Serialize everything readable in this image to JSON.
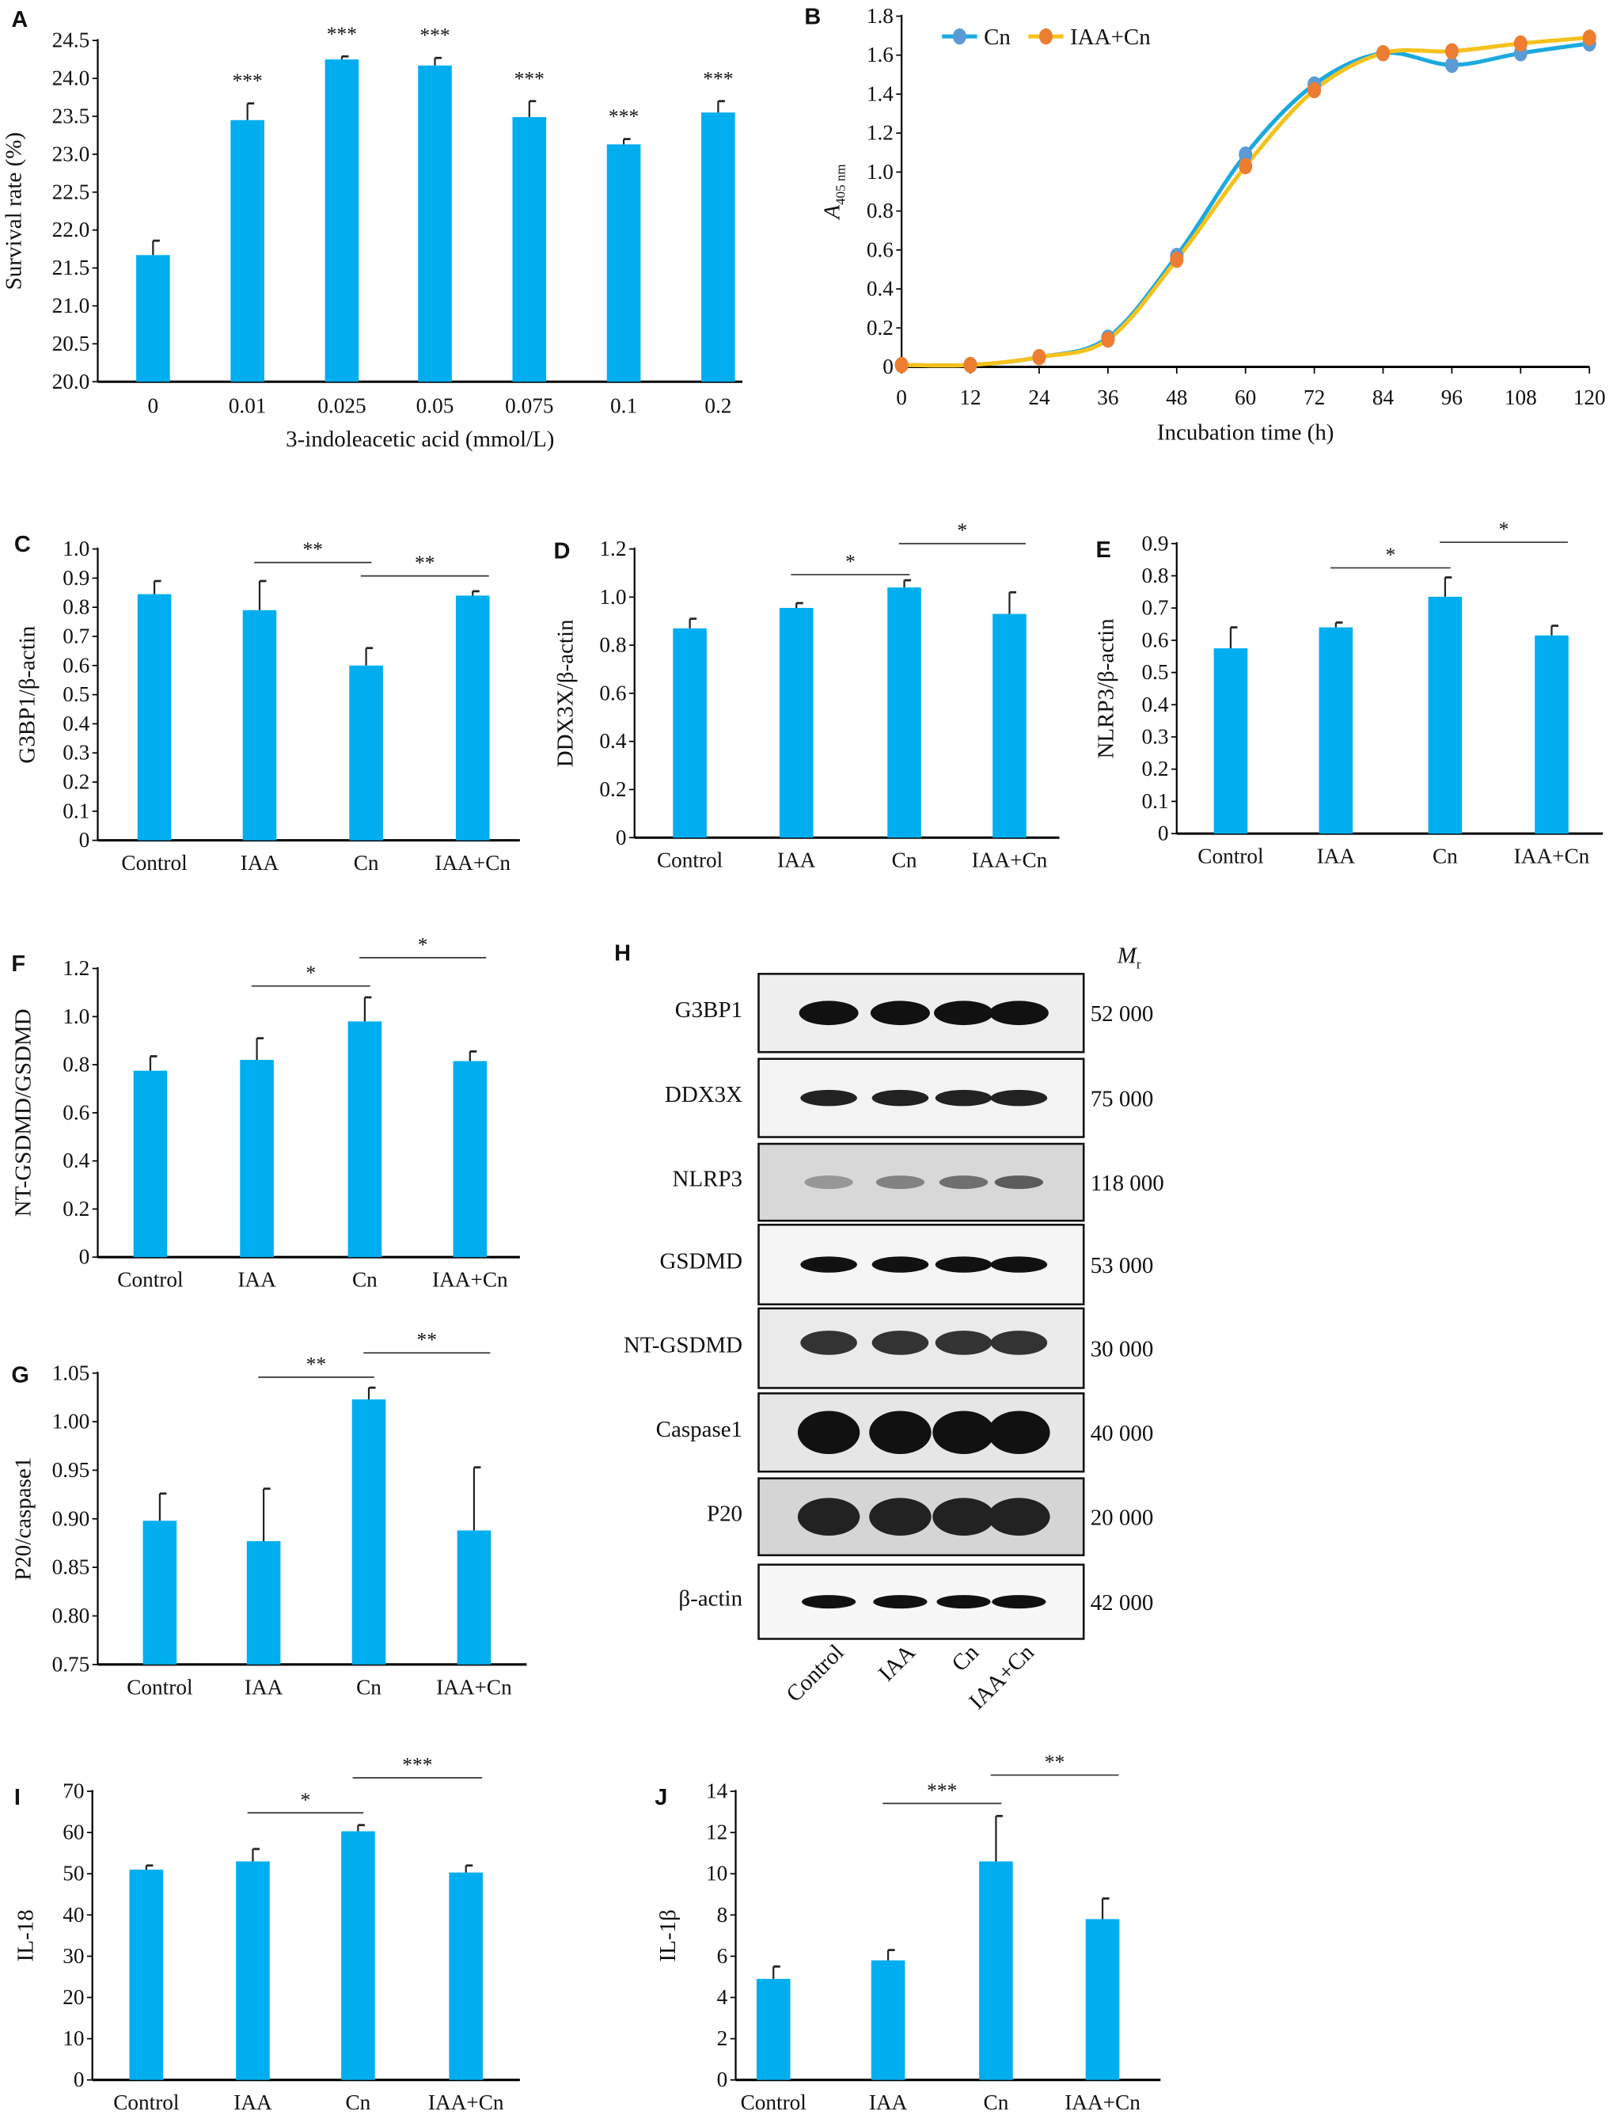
{
  "colors": {
    "bar": "#00AEEF",
    "cn": "#1BA9E0",
    "iaa_cn": "#F5C21B",
    "marker_cn": "#5B9BD5",
    "marker_iaa_cn": "#ED7D31"
  },
  "chart_data": [
    {
      "id": "A",
      "type": "bar",
      "ylabel": "Survival rate (%)",
      "xlabel": "3-indoleacetic acid (mmol/L)",
      "ylim": [
        20.0,
        24.5
      ],
      "yticks": [
        20.0,
        20.5,
        21.0,
        21.5,
        22.0,
        22.5,
        23.0,
        23.5,
        24.0,
        24.5
      ],
      "ytick_labels": [
        "20.0",
        "20.5",
        "21.0",
        "21.5",
        "22.0",
        "22.5",
        "23.0",
        "23.5",
        "24.0",
        "24.5"
      ],
      "categories": [
        "0",
        "0.01",
        "0.025",
        "0.05",
        "0.075",
        "0.1",
        "0.2"
      ],
      "values": [
        21.67,
        23.45,
        24.25,
        24.17,
        23.49,
        23.13,
        23.55
      ],
      "errors": [
        0.19,
        0.22,
        0.04,
        0.1,
        0.21,
        0.07,
        0.15
      ],
      "stars": [
        "",
        "***",
        "***",
        "***",
        "***",
        "***",
        "***"
      ],
      "brackets": []
    },
    {
      "id": "B",
      "type": "line",
      "ylabel": "A405 nm",
      "xlabel": "Incubation time (h)",
      "ylim": [
        0,
        1.8
      ],
      "yticks": [
        0,
        0.2,
        0.4,
        0.6,
        0.8,
        1.0,
        1.2,
        1.4,
        1.6,
        1.8
      ],
      "ytick_labels": [
        "0",
        "0.2",
        "0.4",
        "0.6",
        "0.8",
        "1.0",
        "1.2",
        "1.4",
        "1.6",
        "1.8"
      ],
      "x": [
        0,
        12,
        24,
        36,
        48,
        60,
        72,
        84,
        96,
        108,
        120
      ],
      "xtick_labels": [
        "0",
        "12",
        "24",
        "36",
        "48",
        "60",
        "72",
        "84",
        "96",
        "108",
        "120"
      ],
      "legend_position": "top-left",
      "series": [
        {
          "name": "Cn",
          "values": [
            0.01,
            0.01,
            0.05,
            0.15,
            0.57,
            1.09,
            1.45,
            1.61,
            1.55,
            1.61,
            1.66
          ]
        },
        {
          "name": "IAA+Cn",
          "values": [
            0.01,
            0.01,
            0.05,
            0.14,
            0.55,
            1.03,
            1.42,
            1.61,
            1.62,
            1.66,
            1.69
          ]
        }
      ]
    },
    {
      "id": "C",
      "type": "bar",
      "ylabel": "G3BP1/β-actin",
      "xlabel": "",
      "ylim": [
        0,
        1.0
      ],
      "yticks": [
        0,
        0.1,
        0.2,
        0.3,
        0.4,
        0.5,
        0.6,
        0.7,
        0.8,
        0.9,
        1.0
      ],
      "ytick_labels": [
        "0",
        "0.1",
        "0.2",
        "0.3",
        "0.4",
        "0.5",
        "0.6",
        "0.7",
        "0.8",
        "0.9",
        "1.0"
      ],
      "categories": [
        "Control",
        "IAA",
        "Cn",
        "IAA+Cn"
      ],
      "values": [
        0.845,
        0.79,
        0.6,
        0.84
      ],
      "errors": [
        0.045,
        0.1,
        0.06,
        0.015
      ],
      "stars": [
        "",
        "",
        "",
        ""
      ],
      "brackets": [
        {
          "from": 1,
          "to": 2,
          "label": "**"
        },
        {
          "from": 2,
          "to": 3,
          "label": "**"
        }
      ]
    },
    {
      "id": "D",
      "type": "bar",
      "ylabel": "DDX3X/β-actin",
      "xlabel": "",
      "ylim": [
        0,
        1.2
      ],
      "yticks": [
        0,
        0.2,
        0.4,
        0.6,
        0.8,
        1.0,
        1.2
      ],
      "ytick_labels": [
        "0",
        "0.2",
        "0.4",
        "0.6",
        "0.8",
        "1.0",
        "1.2"
      ],
      "categories": [
        "Control",
        "IAA",
        "Cn",
        "IAA+Cn"
      ],
      "values": [
        0.87,
        0.955,
        1.04,
        0.93
      ],
      "errors": [
        0.04,
        0.02,
        0.03,
        0.09
      ],
      "stars": [
        "",
        "",
        "",
        ""
      ],
      "brackets": [
        {
          "from": 1,
          "to": 2,
          "label": "*"
        },
        {
          "from": 2,
          "to": 3,
          "label": "*"
        }
      ]
    },
    {
      "id": "E",
      "type": "bar",
      "ylabel": "NLRP3/β-actin",
      "xlabel": "",
      "ylim": [
        0,
        0.9
      ],
      "yticks": [
        0,
        0.1,
        0.2,
        0.3,
        0.4,
        0.5,
        0.6,
        0.7,
        0.8,
        0.9
      ],
      "ytick_labels": [
        "0",
        "0.1",
        "0.2",
        "0.3",
        "0.4",
        "0.5",
        "0.6",
        "0.7",
        "0.8",
        "0.9"
      ],
      "categories": [
        "Control",
        "IAA",
        "Cn",
        "IAA+Cn"
      ],
      "values": [
        0.575,
        0.64,
        0.735,
        0.615
      ],
      "errors": [
        0.065,
        0.015,
        0.06,
        0.03
      ],
      "stars": [
        "",
        "",
        "",
        ""
      ],
      "brackets": [
        {
          "from": 1,
          "to": 2,
          "label": "*"
        },
        {
          "from": 2,
          "to": 3,
          "label": "*"
        }
      ]
    },
    {
      "id": "F",
      "type": "bar",
      "ylabel": "NT-GSDMD/GSDMD",
      "xlabel": "",
      "ylim": [
        0,
        1.2
      ],
      "yticks": [
        0,
        0.2,
        0.4,
        0.6,
        0.8,
        1.0,
        1.2
      ],
      "ytick_labels": [
        "0",
        "0.2",
        "0.4",
        "0.6",
        "0.8",
        "1.0",
        "1.2"
      ],
      "categories": [
        "Control",
        "IAA",
        "Cn",
        "IAA+Cn"
      ],
      "values": [
        0.775,
        0.82,
        0.98,
        0.815
      ],
      "errors": [
        0.06,
        0.09,
        0.1,
        0.04
      ],
      "stars": [
        "",
        "",
        "",
        ""
      ],
      "brackets": [
        {
          "from": 1,
          "to": 2,
          "label": "*"
        },
        {
          "from": 2,
          "to": 3,
          "label": "*"
        }
      ]
    },
    {
      "id": "G",
      "type": "bar",
      "ylabel": "P20/caspase1",
      "xlabel": "",
      "ylim": [
        0.75,
        1.05
      ],
      "yticks": [
        0.75,
        0.8,
        0.85,
        0.9,
        0.95,
        1.0,
        1.05
      ],
      "ytick_labels": [
        "0.75",
        "0.80",
        "0.85",
        "0.90",
        "0.95",
        "1.00",
        "1.05"
      ],
      "categories": [
        "Control",
        "IAA",
        "Cn",
        "IAA+Cn"
      ],
      "values": [
        0.898,
        0.877,
        1.023,
        0.888
      ],
      "errors": [
        0.028,
        0.054,
        0.012,
        0.065
      ],
      "stars": [
        "",
        "",
        "",
        ""
      ],
      "brackets": [
        {
          "from": 1,
          "to": 2,
          "label": "**"
        },
        {
          "from": 2,
          "to": 3,
          "label": "**"
        }
      ]
    },
    {
      "id": "I",
      "type": "bar",
      "ylabel": "IL-18",
      "xlabel": "",
      "ylim": [
        0,
        70
      ],
      "yticks": [
        0,
        10,
        20,
        30,
        40,
        50,
        60,
        70
      ],
      "ytick_labels": [
        "0",
        "10",
        "20",
        "30",
        "40",
        "50",
        "60",
        "70"
      ],
      "categories": [
        "Control",
        "IAA",
        "Cn",
        "IAA+Cn"
      ],
      "values": [
        51,
        53,
        60.3,
        50.3
      ],
      "errors": [
        1,
        3,
        1.5,
        1.7
      ],
      "stars": [
        "",
        "",
        "",
        ""
      ],
      "brackets": [
        {
          "from": 1,
          "to": 2,
          "label": "*"
        },
        {
          "from": 2,
          "to": 3,
          "label": "***"
        }
      ]
    },
    {
      "id": "J",
      "type": "bar",
      "ylabel": "IL-1β",
      "xlabel": "",
      "ylim": [
        0,
        14
      ],
      "yticks": [
        0,
        2,
        4,
        6,
        8,
        10,
        12,
        14
      ],
      "ytick_labels": [
        "0",
        "2",
        "4",
        "6",
        "8",
        "10",
        "12",
        "14"
      ],
      "categories": [
        "Control",
        "IAA",
        "Cn",
        "IAA+Cn"
      ],
      "values": [
        4.9,
        5.8,
        10.6,
        7.8
      ],
      "errors": [
        0.6,
        0.5,
        2.2,
        1.0
      ],
      "stars": [
        "",
        "",
        "",
        ""
      ],
      "brackets": [
        {
          "from": 1,
          "to": 2,
          "label": "***"
        },
        {
          "from": 2,
          "to": 3,
          "label": "**"
        }
      ]
    }
  ],
  "blot": {
    "id": "H",
    "mr_header": "M",
    "mr_sub": "r",
    "proteins": [
      {
        "name": "G3BP1",
        "mr": "52 000"
      },
      {
        "name": "DDX3X",
        "mr": "75 000"
      },
      {
        "name": "NLRP3",
        "mr": "118 000"
      },
      {
        "name": "GSDMD",
        "mr": "53 000"
      },
      {
        "name": "NT-GSDMD",
        "mr": "30 000"
      },
      {
        "name": "Caspase1",
        "mr": "40 000"
      },
      {
        "name": "P20",
        "mr": "20 000"
      },
      {
        "name": "β-actin",
        "mr": "42 000"
      }
    ],
    "lanes": [
      "Control",
      "IAA",
      "Cn",
      "IAA+Cn"
    ]
  }
}
